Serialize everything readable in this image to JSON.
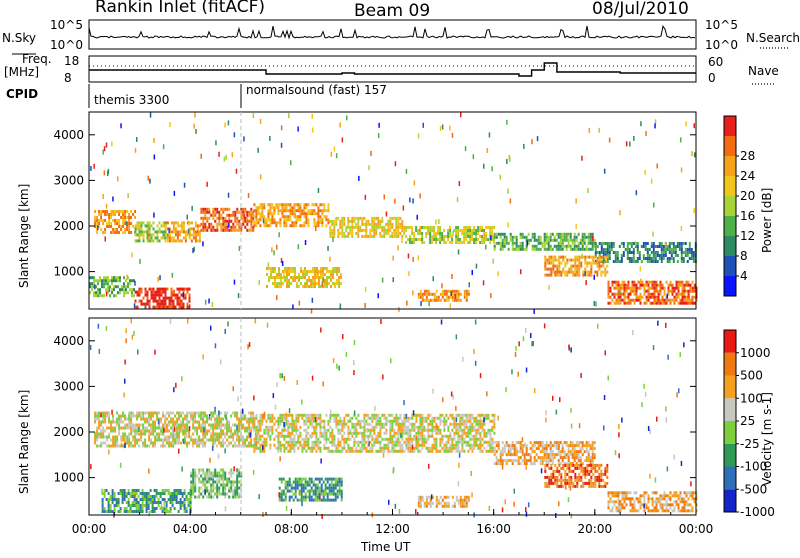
{
  "header": {
    "station": "Rankin Inlet (fitACF)",
    "beam": "Beam 09",
    "date": "08/Jul/2010"
  },
  "nsky_panel": {
    "left_label": "N.Sky",
    "right_label": "N.Search",
    "left_ticks": [
      "10^5",
      "10^0"
    ],
    "right_ticks": [
      "10^5",
      "10^0"
    ]
  },
  "freq_panel": {
    "left_label_1": "Freq.",
    "left_label_2": "[MHz]",
    "right_label": "Nave",
    "left_ticks": [
      "18",
      "8"
    ],
    "right_ticks": [
      "60",
      "0"
    ]
  },
  "cpid": {
    "label": "CPID",
    "modes": [
      {
        "name": "themis 3300",
        "start_hour": 0
      },
      {
        "name": "normalsound (fast) 157",
        "start_hour": 6
      }
    ]
  },
  "time_axis": {
    "label": "Time UT",
    "ticks": [
      "00:00",
      "04:00",
      "08:00",
      "12:00",
      "16:00",
      "20:00",
      "00:00"
    ],
    "range_hours": [
      0,
      24
    ]
  },
  "power_panel": {
    "ylabel": "Slant Range [km]",
    "yticks": [
      "1000",
      "2000",
      "3000",
      "4000"
    ],
    "colorbar_label": "Power [dB]",
    "colorbar_ticks": [
      "4",
      "8",
      "12",
      "16",
      "20",
      "24",
      "28"
    ],
    "colors": [
      "#0a14ff",
      "#1f50b8",
      "#2e8a60",
      "#4fb04a",
      "#a8d23a",
      "#f2c51c",
      "#f6a21a",
      "#f36b14",
      "#e6201a"
    ]
  },
  "velocity_panel": {
    "ylabel": "Slant Range [km]",
    "yticks": [
      "1000",
      "2000",
      "3000",
      "4000"
    ],
    "colorbar_label": "Velocity [m s-1]",
    "colorbar_ticks": [
      "1000",
      "500",
      "100",
      "25",
      "-25",
      "-100",
      "-500",
      "-1000"
    ],
    "colors": [
      "#1424c8",
      "#2e6fb8",
      "#2f9a55",
      "#7dcf3e",
      "#c8c8c0",
      "#f4a020",
      "#f07a12",
      "#e81a12"
    ]
  },
  "chart_data": {
    "type": "heatmap",
    "x_unit": "hours UT",
    "y_unit": "slant range km",
    "ylim": [
      180,
      4500
    ],
    "xlim": [
      0,
      24
    ],
    "power_bands": [
      {
        "t0": 0.2,
        "t1": 1.8,
        "r0": 1850,
        "r1": 2350,
        "level": 6
      },
      {
        "t0": 1.8,
        "t1": 3.0,
        "r0": 1700,
        "r1": 2100,
        "level": 4
      },
      {
        "t0": 3.0,
        "t1": 4.4,
        "r0": 1700,
        "r1": 2100,
        "level": 6
      },
      {
        "t0": 4.4,
        "t1": 6.5,
        "r0": 1900,
        "r1": 2400,
        "level": 7
      },
      {
        "t0": 6.5,
        "t1": 9.5,
        "r0": 2000,
        "r1": 2500,
        "level": 6
      },
      {
        "t0": 9.5,
        "t1": 12.5,
        "r0": 1800,
        "r1": 2200,
        "level": 5
      },
      {
        "t0": 12.5,
        "t1": 16.0,
        "r0": 1650,
        "r1": 2000,
        "level": 4
      },
      {
        "t0": 16.0,
        "t1": 20.0,
        "r0": 1500,
        "r1": 1850,
        "level": 3
      },
      {
        "t0": 20.0,
        "t1": 24.0,
        "r0": 1200,
        "r1": 1650,
        "level": 2
      },
      {
        "t0": 1.8,
        "t1": 4.0,
        "r0": 200,
        "r1": 650,
        "level": 8
      },
      {
        "t0": 0.0,
        "t1": 1.8,
        "r0": 450,
        "r1": 900,
        "level": 3
      },
      {
        "t0": 7.0,
        "t1": 10.0,
        "r0": 700,
        "r1": 1100,
        "level": 5
      },
      {
        "t0": 13.0,
        "t1": 15.0,
        "r0": 380,
        "r1": 600,
        "level": 6
      },
      {
        "t0": 18.0,
        "t1": 20.5,
        "r0": 950,
        "r1": 1350,
        "level": 6
      },
      {
        "t0": 20.5,
        "t1": 24.0,
        "r0": 300,
        "r1": 800,
        "level": 7
      }
    ],
    "velocity_bands": [
      {
        "t0": 0.2,
        "t1": 6.5,
        "r0": 1700,
        "r1": 2450,
        "level": 4
      },
      {
        "t0": 6.5,
        "t1": 16.0,
        "r0": 1600,
        "r1": 2400,
        "level": 4
      },
      {
        "t0": 16.0,
        "t1": 20.0,
        "r0": 1300,
        "r1": 1800,
        "level": 5
      },
      {
        "t0": 0.5,
        "t1": 4.0,
        "r0": 250,
        "r1": 750,
        "level": 2
      },
      {
        "t0": 4.0,
        "t1": 6.0,
        "r0": 600,
        "r1": 1200,
        "level": 3
      },
      {
        "t0": 7.5,
        "t1": 10.0,
        "r0": 500,
        "r1": 1000,
        "level": 2
      },
      {
        "t0": 13.0,
        "t1": 15.0,
        "r0": 350,
        "r1": 600,
        "level": 5
      },
      {
        "t0": 18.0,
        "t1": 20.5,
        "r0": 800,
        "r1": 1300,
        "level": 6
      },
      {
        "t0": 20.5,
        "t1": 24.0,
        "r0": 300,
        "r1": 700,
        "level": 5
      }
    ]
  }
}
